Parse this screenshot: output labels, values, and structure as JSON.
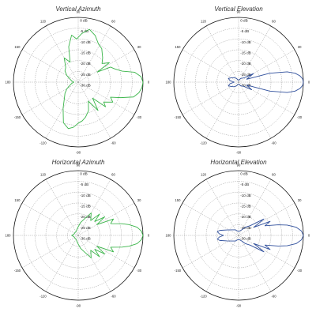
{
  "colors": {
    "green": "#3bb54a",
    "blue": "#2f4f9c",
    "grid": "#9a9a9a",
    "outline": "#111111"
  },
  "chart_data": [
    {
      "type": "polar",
      "title": "Vertical Azimuth",
      "color": "green",
      "radial_ticks": [
        "0 dB",
        "-5 dB",
        "-10 dB",
        "-15 dB",
        "-20 dB",
        "-25 dB",
        "-30 dB"
      ],
      "angle_ticks": [
        "0",
        "30",
        "60",
        "90",
        "120",
        "150",
        "180",
        "-150",
        "-120",
        "-90",
        "-60",
        "-30"
      ],
      "rlim": [
        -30,
        0
      ],
      "series": [
        {
          "theta": [
            0,
            5,
            10,
            14,
            20,
            25,
            28,
            32,
            38,
            45,
            55,
            62,
            70,
            78,
            86,
            92,
            98,
            105,
            112,
            120,
            130,
            140,
            150,
            160,
            170,
            180,
            190,
            200,
            210,
            220,
            230,
            240,
            250,
            258,
            264,
            270,
            276,
            282,
            290,
            298,
            305,
            312,
            318,
            322,
            330,
            335,
            340,
            345,
            350,
            355
          ],
          "r": [
            0,
            -0.8,
            -3.5,
            -9,
            -12,
            -13.5,
            -20,
            -13,
            -16,
            -14,
            -11,
            -10,
            -7,
            -5,
            -7.5,
            -10,
            -8,
            -13,
            -20,
            -17,
            -21,
            -22,
            -24,
            -26,
            -27,
            -28,
            -27,
            -26,
            -24,
            -22,
            -20,
            -16,
            -10,
            -8,
            -9,
            -11,
            -12,
            -13.5,
            -16,
            -20,
            -14,
            -20,
            -13,
            -15,
            -11.5,
            -13.5,
            -9,
            -3.5,
            -1.5,
            -0.4
          ]
        }
      ]
    },
    {
      "type": "polar",
      "title": "Vertical Elevation",
      "color": "blue",
      "radial_ticks": [
        "0 dB",
        "-5 dB",
        "-10 dB",
        "-15 dB",
        "-20 dB",
        "-25 dB",
        "-30 dB"
      ],
      "angle_ticks": [
        "0",
        "30",
        "60",
        "90",
        "120",
        "150",
        "180",
        "-150",
        "-120",
        "-90",
        "-60",
        "-30"
      ],
      "rlim": [
        -30,
        0
      ],
      "series": [
        {
          "theta": [
            0,
            3,
            6,
            9,
            12,
            16,
            20,
            30,
            40,
            60,
            80,
            100,
            120,
            135,
            150,
            160,
            170,
            180,
            190,
            200,
            210,
            225,
            240,
            260,
            280,
            300,
            320,
            330,
            340,
            344,
            348,
            351,
            354,
            357
          ],
          "r": [
            0,
            -0.3,
            -1.5,
            -3.5,
            -7,
            -15,
            -26,
            -22,
            -27,
            -28,
            -29,
            -29,
            -28,
            -27,
            -26,
            -25,
            -26,
            -28,
            -26,
            -25,
            -26,
            -27,
            -28,
            -29,
            -29,
            -28,
            -27,
            -23,
            -26,
            -15,
            -7,
            -3.5,
            -1.5,
            -0.3
          ]
        }
      ]
    },
    {
      "type": "polar",
      "title": "Horizontal Azimuth",
      "color": "green",
      "radial_ticks": [
        "0 dB",
        "-5 dB",
        "-10 dB",
        "-15 dB",
        "-20 dB",
        "-25 dB",
        "-30 dB"
      ],
      "angle_ticks": [
        "0",
        "30",
        "60",
        "90",
        "120",
        "150",
        "180",
        "-150",
        "-120",
        "-90",
        "-60",
        "-30"
      ],
      "rlim": [
        -30,
        0
      ],
      "series": [
        {
          "theta": [
            0,
            4,
            8,
            12,
            15,
            20,
            25,
            30,
            35,
            40,
            45,
            50,
            60,
            70,
            80,
            90,
            100,
            120,
            140,
            160,
            180,
            200,
            220,
            240,
            260,
            270,
            280,
            290,
            300,
            310,
            315,
            320,
            325,
            330,
            335,
            340,
            345,
            348,
            352,
            356
          ],
          "r": [
            0,
            -0.7,
            -2.5,
            -6,
            -9,
            -14,
            -12,
            -20,
            -15,
            -20,
            -16,
            -21,
            -18,
            -22,
            -24,
            -26,
            -27,
            -28,
            -28,
            -28,
            -27,
            -28,
            -28,
            -28,
            -27,
            -26,
            -24,
            -22,
            -18,
            -21,
            -16,
            -20,
            -15,
            -20,
            -12,
            -14,
            -9,
            -6,
            -2.5,
            -0.7
          ]
        }
      ]
    },
    {
      "type": "polar",
      "title": "Horizontal Elevation",
      "color": "blue",
      "radial_ticks": [
        "0 dB",
        "-5 dB",
        "-10 dB",
        "-15 dB",
        "-20 dB",
        "-25 dB",
        "-30 dB"
      ],
      "angle_ticks": [
        "0",
        "30",
        "60",
        "90",
        "120",
        "150",
        "180",
        "-150",
        "-120",
        "-90",
        "-60",
        "-30"
      ],
      "rlim": [
        -30,
        0
      ],
      "series": [
        {
          "theta": [
            0,
            4,
            8,
            12,
            15,
            20,
            24,
            28,
            33,
            40,
            50,
            60,
            80,
            100,
            120,
            140,
            155,
            165,
            170,
            175,
            180,
            185,
            190,
            195,
            205,
            220,
            240,
            260,
            280,
            300,
            310,
            320,
            327,
            332,
            336,
            340,
            345,
            348,
            352,
            356
          ],
          "r": [
            0,
            -0.8,
            -3,
            -7,
            -11,
            -17,
            -14,
            -22,
            -16,
            -23,
            -25,
            -27,
            -28,
            -28,
            -27,
            -26,
            -24,
            -21,
            -20,
            -21,
            -23,
            -21,
            -20,
            -21,
            -24,
            -26,
            -27,
            -28,
            -28,
            -27,
            -25,
            -23,
            -16,
            -22,
            -14,
            -17,
            -11,
            -7,
            -3,
            -0.8
          ]
        }
      ]
    }
  ]
}
